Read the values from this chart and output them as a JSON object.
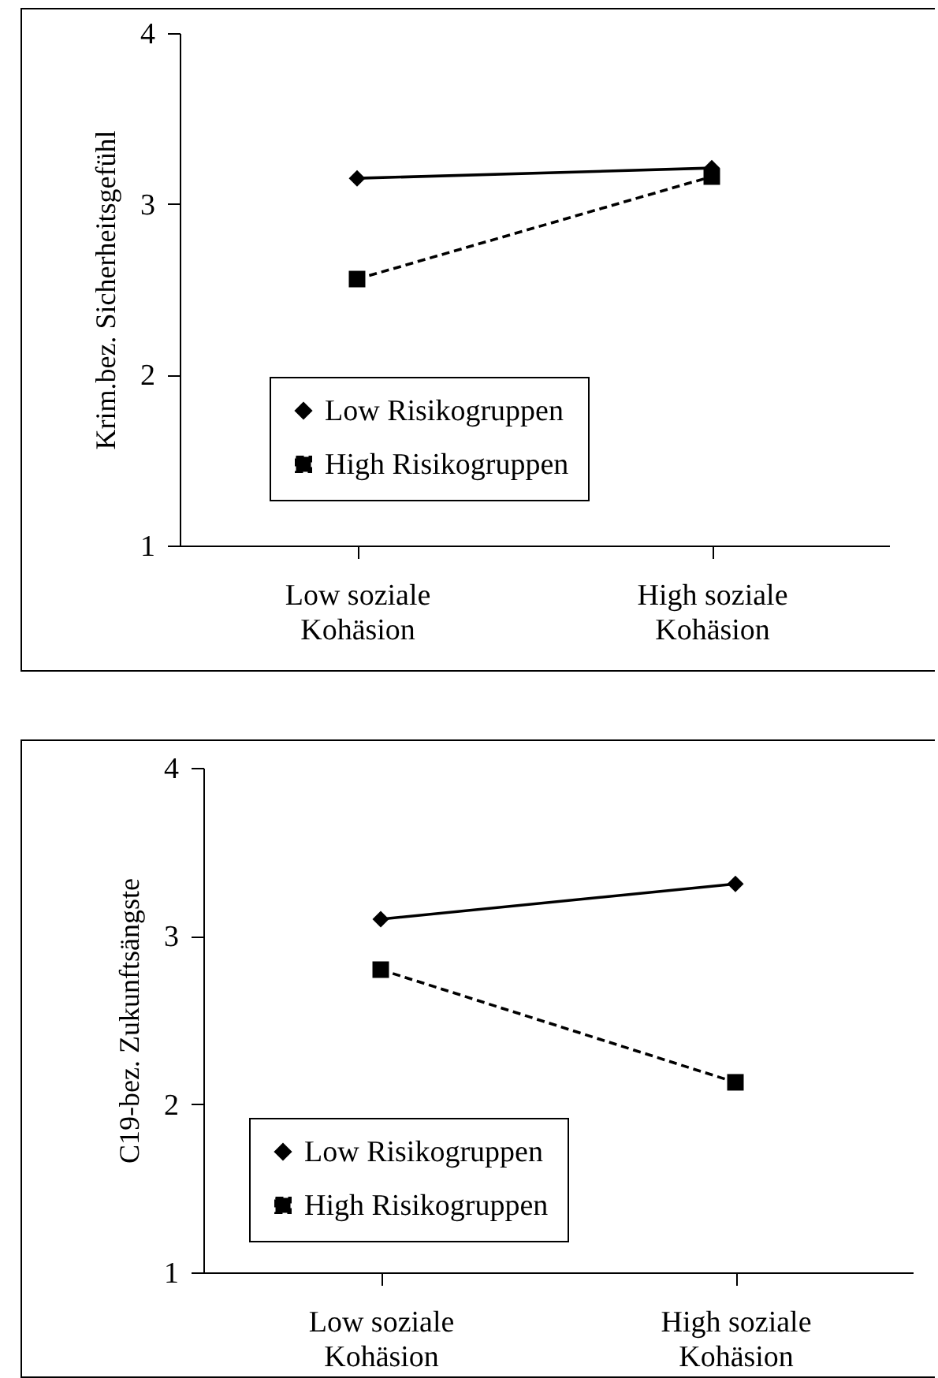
{
  "chart_data": [
    {
      "type": "line",
      "ylabel": "Krim.bez. Sicherheitsgefühl",
      "categories": [
        "Low soziale Kohäsion",
        "High soziale Kohäsion"
      ],
      "ylim": [
        1,
        4
      ],
      "yticks": [
        1,
        2,
        3,
        4
      ],
      "legend": "bottom",
      "series": [
        {
          "name": "Low Risikogruppen",
          "color": "#000000",
          "marker": "diamond",
          "line_style": "solid",
          "values": [
            3.15,
            3.21
          ]
        },
        {
          "name": "High Risikogruppen",
          "color": "#000000",
          "marker": "square",
          "line_style": "dashed",
          "values": [
            2.56,
            3.16
          ]
        }
      ]
    },
    {
      "type": "line",
      "ylabel": "C19-bez. Zukunftsängste",
      "categories": [
        "Low soziale Kohäsion",
        "High soziale Kohäsion"
      ],
      "ylim": [
        1,
        4
      ],
      "yticks": [
        1,
        2,
        3,
        4
      ],
      "legend": "bottom",
      "series": [
        {
          "name": "Low Risikogruppen",
          "color": "#000000",
          "marker": "diamond",
          "line_style": "solid",
          "values": [
            3.1,
            3.31
          ]
        },
        {
          "name": "High Risikogruppen",
          "color": "#000000",
          "marker": "square",
          "line_style": "dashed",
          "values": [
            2.8,
            2.13
          ]
        }
      ]
    }
  ]
}
